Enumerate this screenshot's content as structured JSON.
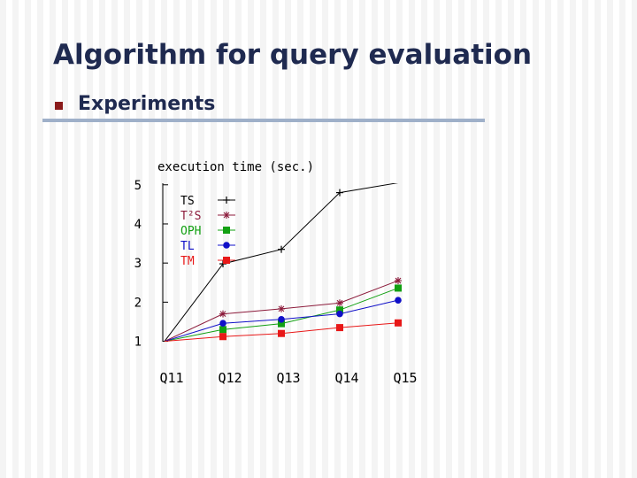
{
  "slide": {
    "title": "Algorithm for query evaluation",
    "bullet": "Experiments"
  },
  "chart_data": {
    "type": "line",
    "ylabel": "execution time (sec.)",
    "categories": [
      "Q11",
      "Q12",
      "Q13",
      "Q14",
      "Q15"
    ],
    "yticks": [
      1,
      2,
      3,
      4,
      5
    ],
    "ylim": [
      0.99,
      5.04
    ],
    "grid": false,
    "legend": "top-left",
    "series": [
      {
        "name": "TS",
        "color": "#000000",
        "marker": "plus",
        "values": [
          1,
          2.98,
          3.35,
          4.8,
          5.05
        ]
      },
      {
        "name": "T²S",
        "color": "#8b1a3a",
        "marker": "star",
        "values": [
          1,
          1.7,
          1.83,
          1.98,
          2.55
        ]
      },
      {
        "name": "OPH",
        "color": "#12a012",
        "marker": "square",
        "values": [
          1,
          1.3,
          1.45,
          1.8,
          2.36
        ]
      },
      {
        "name": "TL",
        "color": "#1010c8",
        "marker": "circle",
        "values": [
          1,
          1.46,
          1.56,
          1.7,
          2.05
        ]
      },
      {
        "name": "TM",
        "color": "#e81818",
        "marker": "square",
        "values": [
          1,
          1.12,
          1.2,
          1.35,
          1.47
        ]
      }
    ]
  }
}
